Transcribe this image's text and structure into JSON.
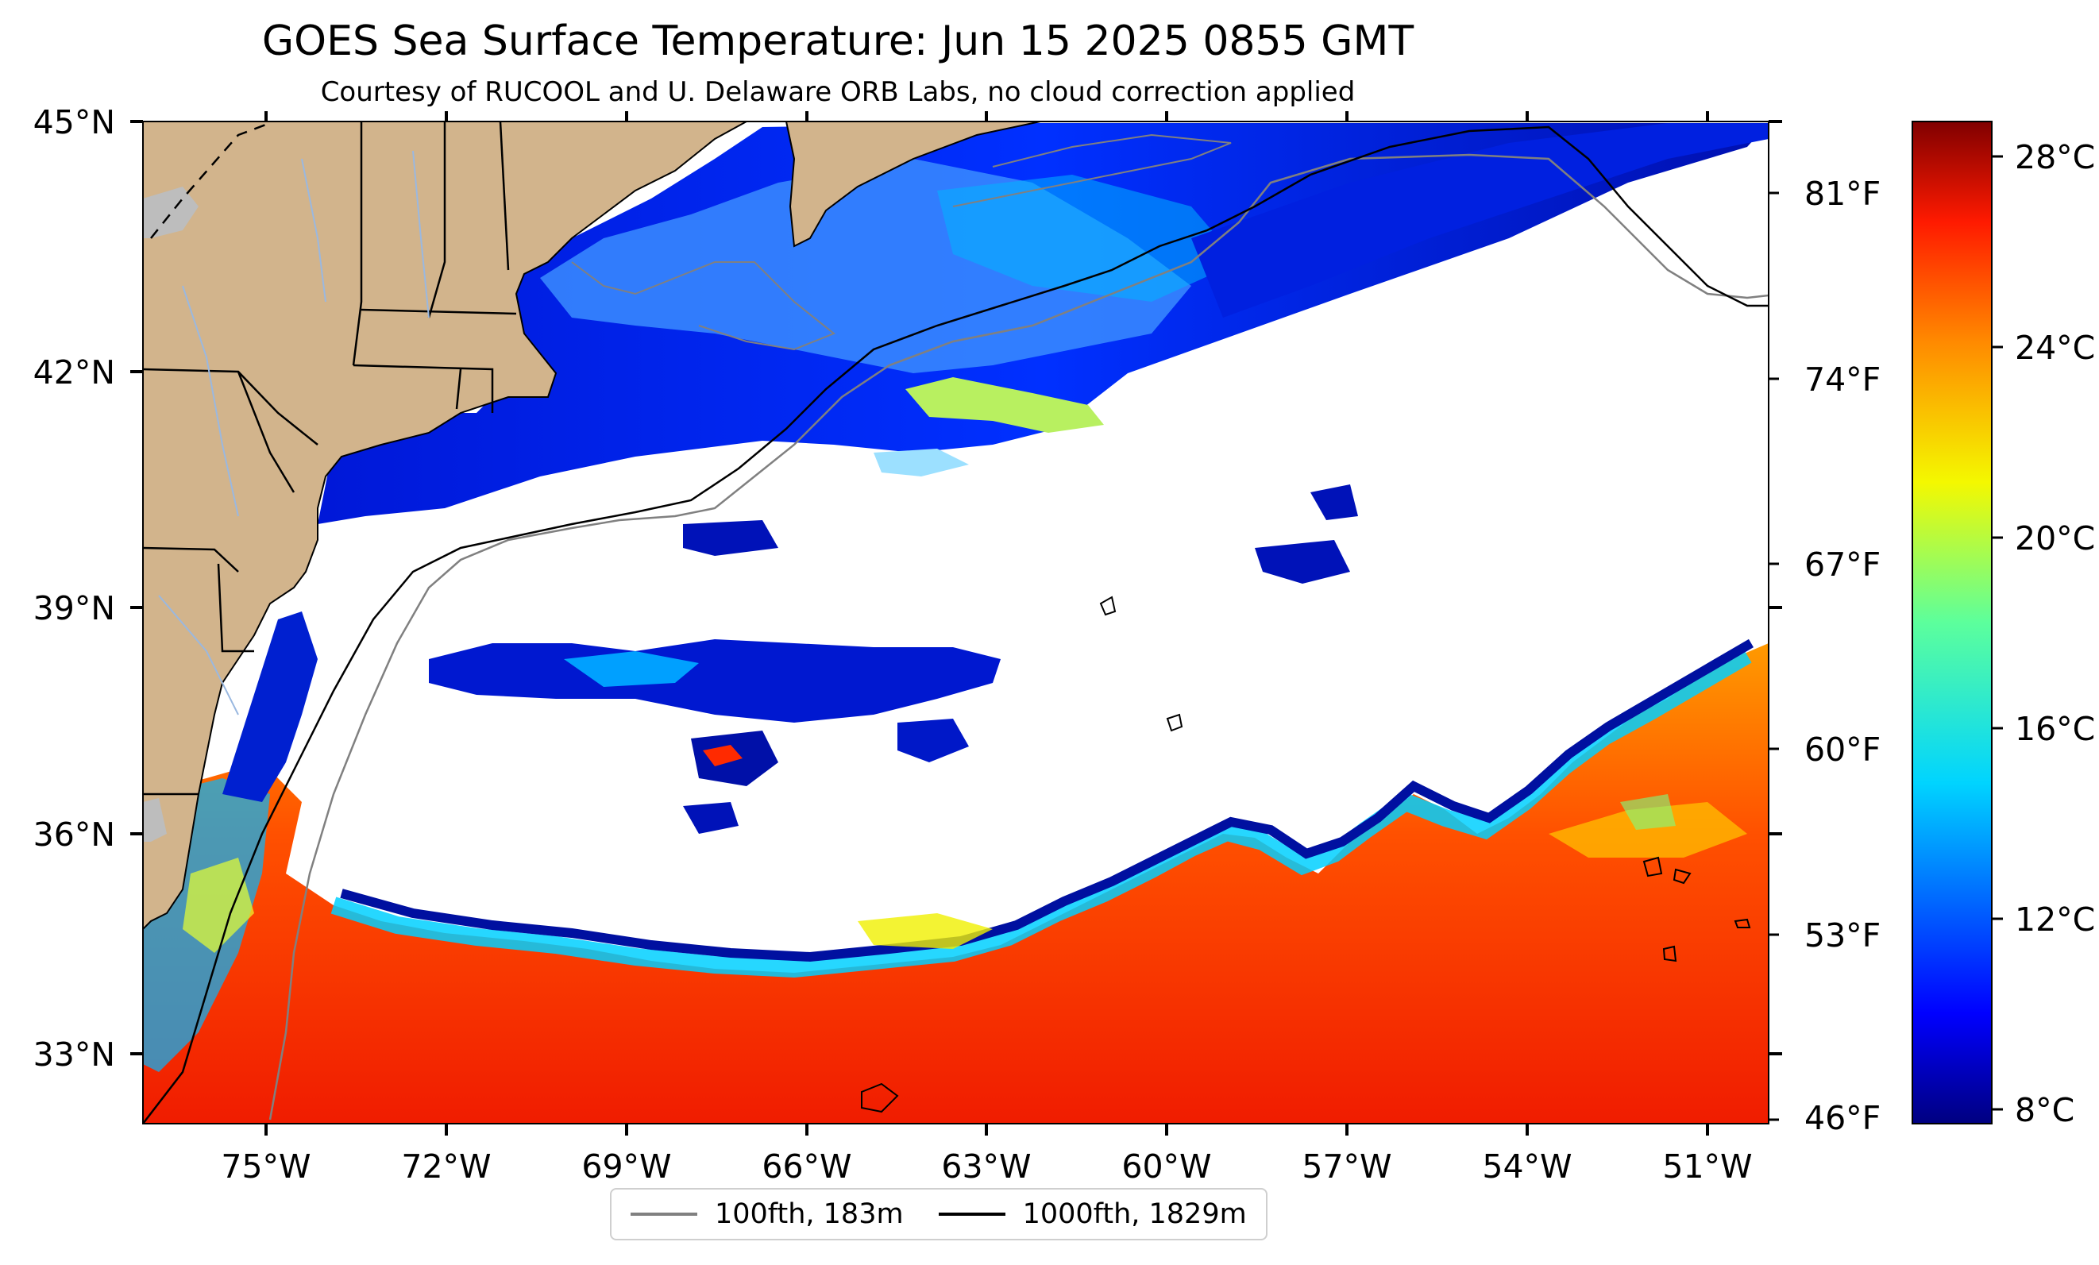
{
  "title": "GOES Sea Surface Temperature: Jun 15 2025 0855 GMT",
  "subtitle": "Courtesy of RUCOOL and U. Delaware ORB Labs, no cloud correction applied",
  "map": {
    "lon_range": [
      -77.5,
      -50.4
    ],
    "lat_range": [
      32.2,
      45.0
    ],
    "lat_ticks": [
      "45°N",
      "42°N",
      "39°N",
      "36°N",
      "33°N"
    ],
    "lon_ticks": [
      "75°W",
      "72°W",
      "69°W",
      "66°W",
      "63°W",
      "60°W",
      "57°W",
      "54°W",
      "51°W"
    ],
    "temp_f_ticks": [
      "81°F",
      "74°F",
      "67°F",
      "60°F",
      "53°F",
      "46°F"
    ],
    "colors": {
      "land": "#d2b48c",
      "cloud_or_missing": "#ffffff",
      "lakes": "#bdbdbd",
      "isobath_100fth": "#808080",
      "isobath_1000fth": "#000000"
    }
  },
  "colorbar": {
    "colormap": "jet",
    "range_c": [
      7.5,
      28.5
    ],
    "tick_labels": [
      "28°C",
      "24°C",
      "20°C",
      "16°C",
      "12°C",
      "8°C"
    ]
  },
  "legend": [
    {
      "label": "100fth, 183m",
      "color": "#808080"
    },
    {
      "label": "1000fth, 1829m",
      "color": "#000000"
    }
  ]
}
